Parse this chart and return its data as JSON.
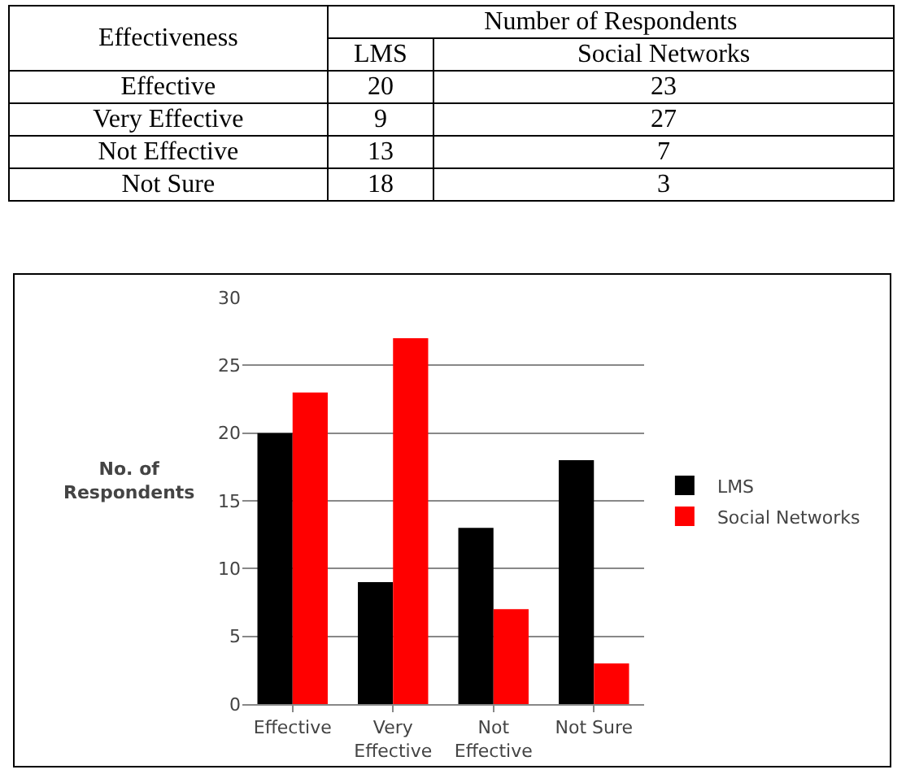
{
  "chart_data": [
    {
      "type": "other",
      "categories": [
        "Effective",
        "Very Effective",
        "Not Effective",
        "Not Sure"
      ],
      "series": [
        {
          "name": "LMS",
          "values": [
            20,
            9,
            13,
            18
          ]
        },
        {
          "name": "Social Networks",
          "values": [
            23,
            27,
            7,
            3
          ]
        }
      ],
      "data_labels": true,
      "annotations": [
        "Effectiveness",
        "Number of Respondents"
      ]
    },
    {
      "type": "bar",
      "ylabel": "No. of Respondents",
      "categories": [
        "Effective",
        "Very Effective",
        "Not Effective",
        "Not Sure"
      ],
      "series": [
        {
          "name": "LMS",
          "color": "#000000",
          "values": [
            20,
            9,
            13,
            18
          ]
        },
        {
          "name": "Social Networks",
          "color": "#ff0000",
          "values": [
            23,
            27,
            7,
            3
          ]
        }
      ],
      "ylim": [
        0,
        30
      ],
      "yticks": [
        0,
        5,
        10,
        15,
        20,
        25,
        30
      ],
      "grid": "y",
      "legend": "right"
    }
  ]
}
